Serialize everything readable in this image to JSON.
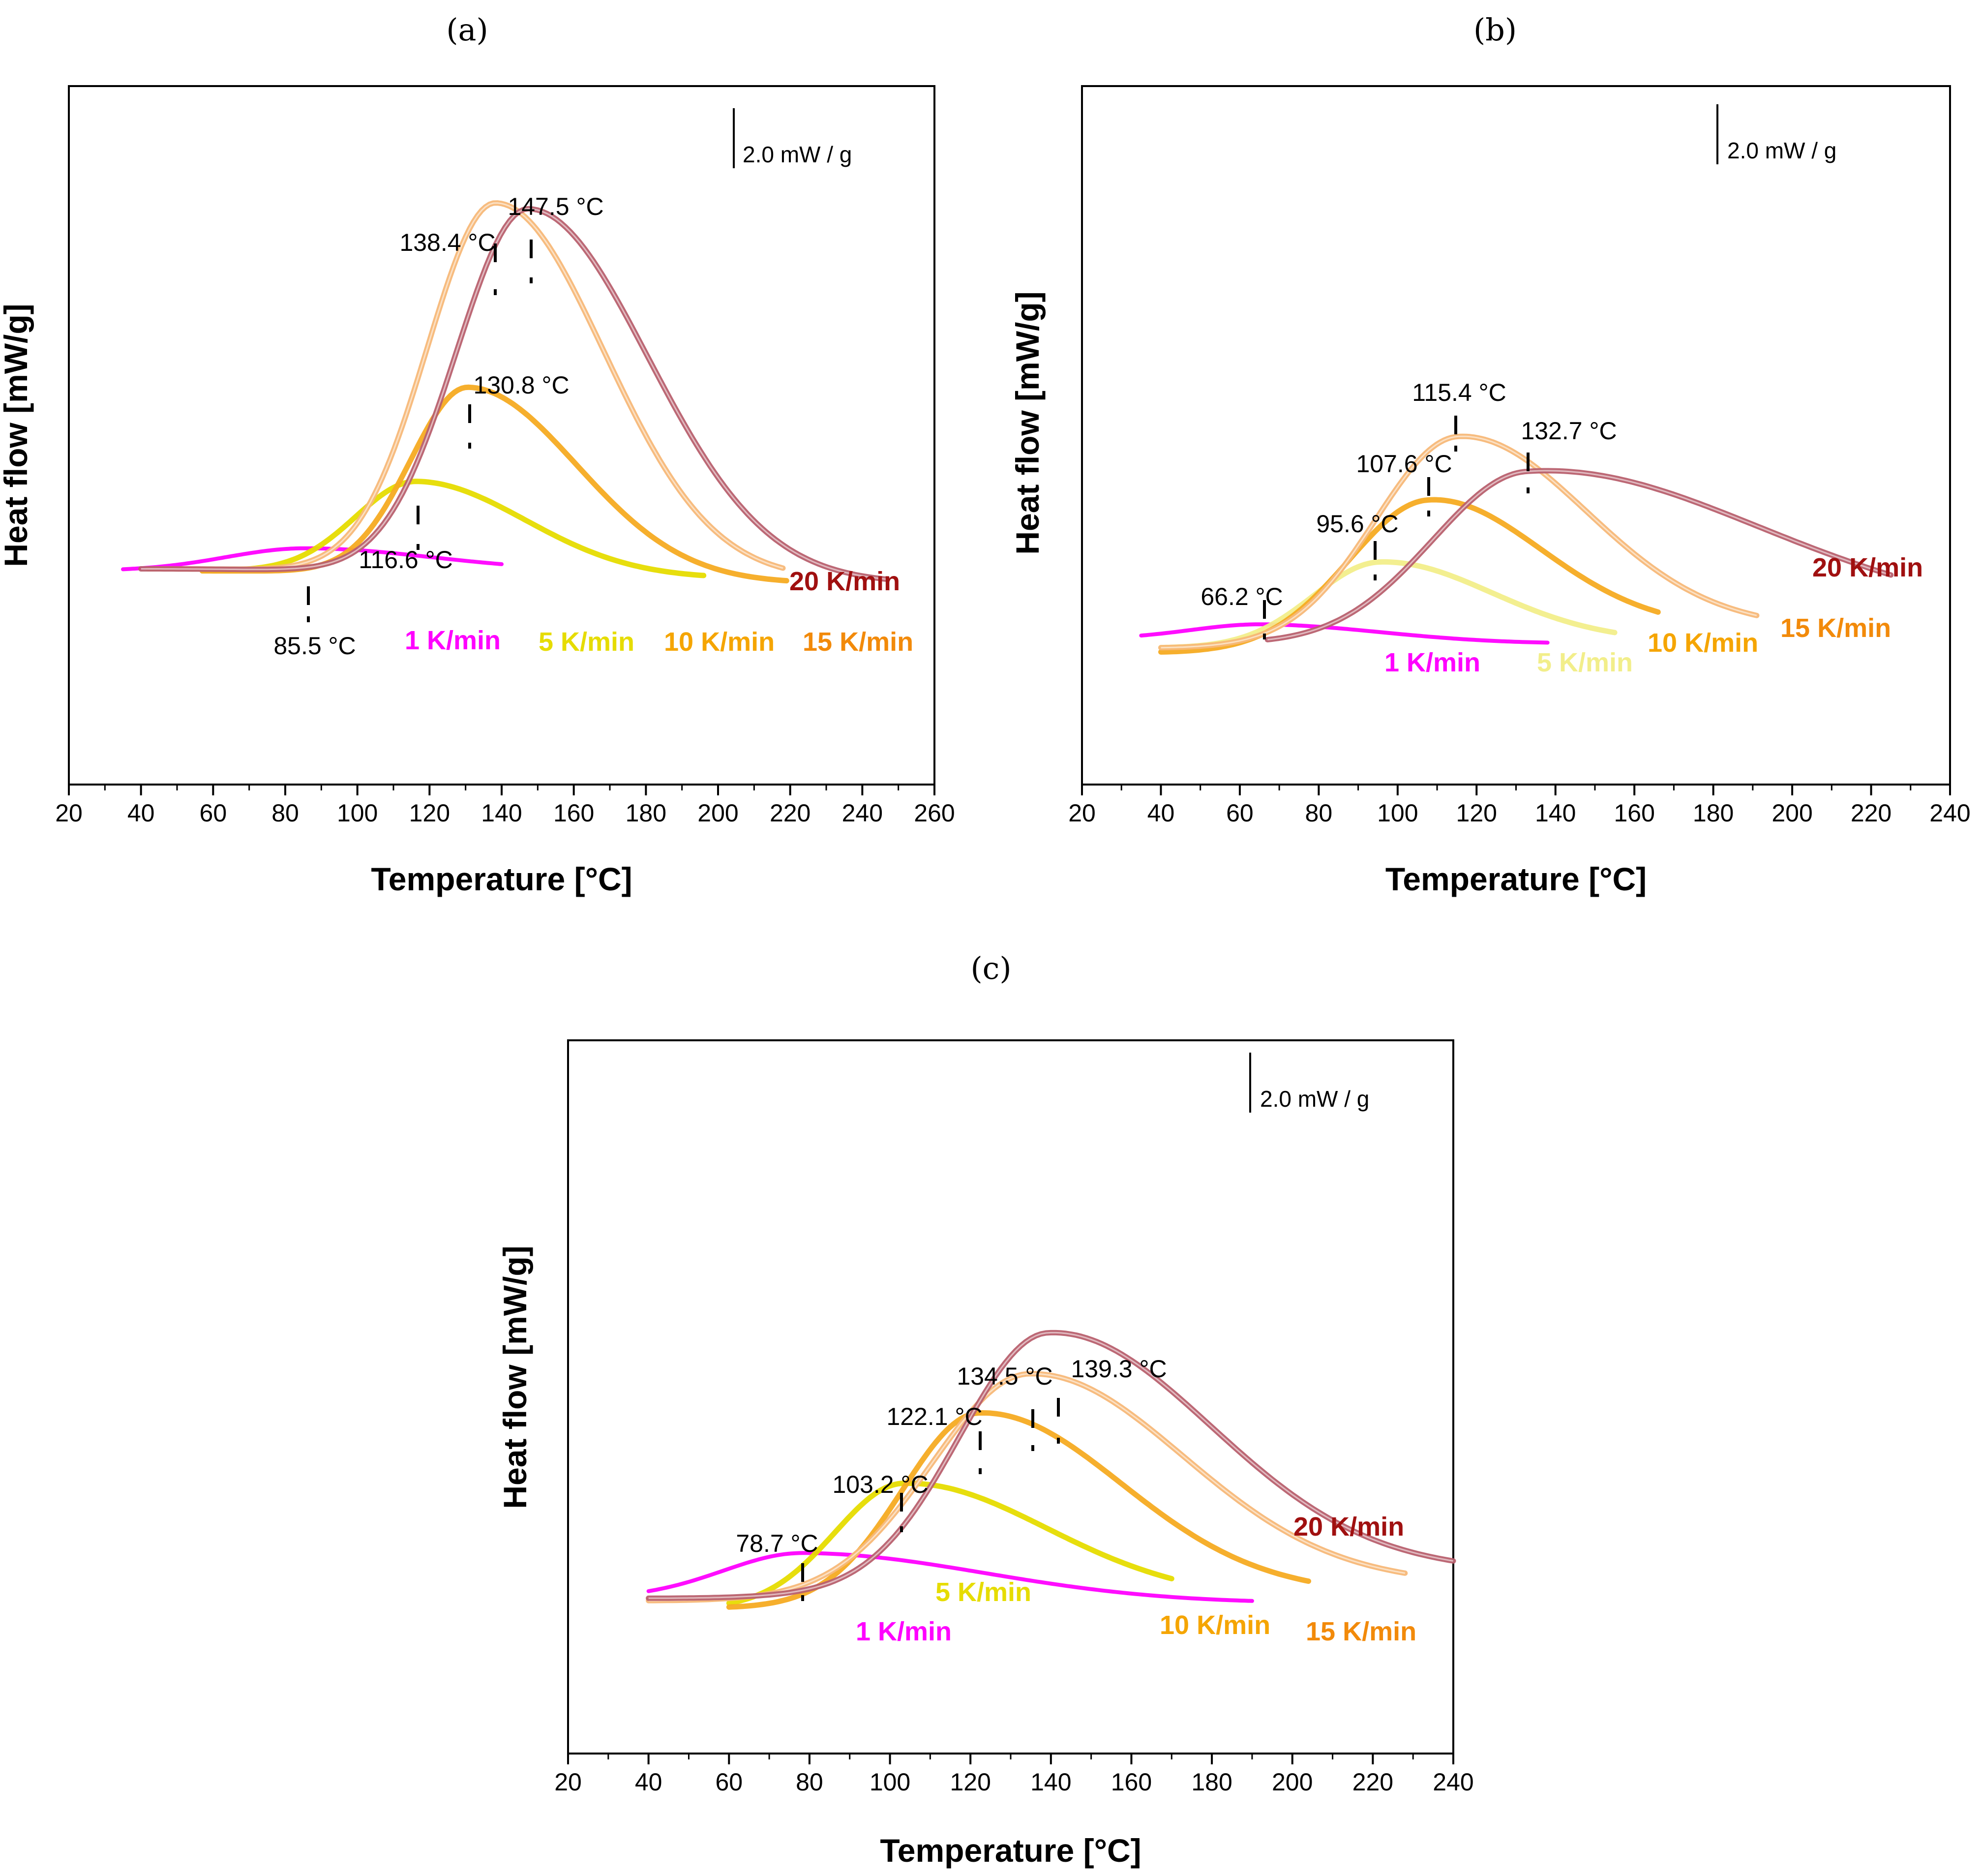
{
  "figure": {
    "colors": {
      "1 K/min": "#ff00ff",
      "5 K/min": "#e6dc00",
      "10 K/min": "#f5ab22",
      "15 K/min": "#f7b878",
      "20 K/min": "#b8606e",
      "label_5_b": "#f2ee8a",
      "label_20": "#a01010",
      "label_15": "#f28a0a",
      "label_10": "#f5a500",
      "label_5": "#e6dc00",
      "label_1": "#ff00ff"
    }
  },
  "chart_data": [
    {
      "panel_label": "(a)",
      "type": "line",
      "xlabel": "Temperature [°C]",
      "ylabel": "Heat flow [mW/g]",
      "xlim": [
        20,
        260
      ],
      "xticks": [
        20,
        40,
        60,
        80,
        100,
        120,
        140,
        160,
        180,
        200,
        220,
        240,
        260
      ],
      "scale_bar": "2.0 mW / g",
      "series": [
        {
          "name": "1 K/min",
          "start": 35,
          "base_start": 0.0,
          "end": 140,
          "base_end": 0.0,
          "peak_T": 85.5,
          "peak_h": 0.55,
          "w_left": 22,
          "w_right": 35
        },
        {
          "name": "5 K/min",
          "start": 57,
          "base_start": 0.0,
          "end": 196,
          "base_end": -0.18,
          "peak_T": 116.6,
          "peak_h": 2.25,
          "w_left": 17,
          "w_right": 30
        },
        {
          "name": "10 K/min",
          "start": 57,
          "base_start": 0.0,
          "end": 219,
          "base_end": -0.3,
          "peak_T": 130.8,
          "peak_h": 4.6,
          "w_left": 16,
          "w_right": 30
        },
        {
          "name": "15 K/min",
          "start": 42,
          "base_start": 0.05,
          "end": 218,
          "base_end": -0.2,
          "peak_T": 138.4,
          "peak_h": 9.05,
          "w_left": 19,
          "w_right": 30
        },
        {
          "name": "20 K/min",
          "start": 40,
          "base_start": 0.05,
          "end": 247,
          "base_end": -0.3,
          "peak_T": 147.5,
          "peak_h": 8.95,
          "w_left": 20,
          "w_right": 33
        }
      ],
      "peak_labels": [
        "85.5 °C",
        "116.6 °C",
        "130.8 °C",
        "138.4 °C",
        "147.5 °C"
      ],
      "legend_labels": [
        "1 K/min",
        "5 K/min",
        "10 K/min",
        "15 K/min",
        "20 K/min"
      ]
    },
    {
      "panel_label": "(b)",
      "type": "line",
      "xlabel": "Temperature [°C]",
      "ylabel": "Heat flow [mW/g]",
      "xlim": [
        20,
        240
      ],
      "xticks": [
        20,
        40,
        60,
        80,
        100,
        120,
        140,
        160,
        180,
        200,
        220,
        240
      ],
      "scale_bar": "2.0 mW / g",
      "series": [
        {
          "name": "1 K/min",
          "start": 35,
          "base_start": -0.35,
          "end": 138,
          "base_end": -0.45,
          "peak_T": 66.2,
          "peak_h": 0.35,
          "w_left": 18,
          "w_right": 30
        },
        {
          "name": "5 K/min",
          "start": 40,
          "base_start": -0.55,
          "end": 155,
          "base_end": -0.4,
          "peak_T": 95.6,
          "peak_h": 1.85,
          "w_left": 17,
          "w_right": 28
        },
        {
          "name": "10 K/min",
          "start": 40,
          "base_start": -0.65,
          "end": 166,
          "base_end": -0.1,
          "peak_T": 107.6,
          "peak_h": 3.1,
          "w_left": 20,
          "w_right": 28
        },
        {
          "name": "15 K/min",
          "start": 40,
          "base_start": -0.55,
          "end": 191,
          "base_end": -0.1,
          "peak_T": 115.4,
          "peak_h": 4.5,
          "w_left": 21,
          "w_right": 32
        },
        {
          "name": "20 K/min",
          "start": 67,
          "base_start": -0.45,
          "end": 225,
          "base_end": 0.2,
          "peak_T": 132.7,
          "peak_h": 3.6,
          "w_left": 24,
          "w_right": 55
        }
      ],
      "peak_labels": [
        "66.2 °C",
        "95.6 °C",
        "107.6 °C",
        "115.4 °C",
        "132.7 °C"
      ],
      "legend_labels": [
        "1 K/min",
        "5 K/min",
        "10 K/min",
        "15 K/min",
        "20 K/min"
      ]
    },
    {
      "panel_label": "(c)",
      "type": "line",
      "xlabel": "Temperature [°C]",
      "ylabel": "Heat flow [mW/g]",
      "xlim": [
        20,
        240
      ],
      "xticks": [
        20,
        40,
        60,
        80,
        100,
        120,
        140,
        160,
        180,
        200,
        220,
        240
      ],
      "scale_bar": "2.0 mW / g",
      "series": [
        {
          "name": "1 K/min",
          "start": 40,
          "base_start": 0.0,
          "end": 190,
          "base_end": -0.1,
          "peak_T": 78.7,
          "peak_h": 0.95,
          "w_left": 20,
          "w_right": 45
        },
        {
          "name": "5 K/min",
          "start": 60,
          "base_start": -0.2,
          "end": 170,
          "base_end": 0.0,
          "peak_T": 103.2,
          "peak_h": 2.5,
          "w_left": 17,
          "w_right": 35
        },
        {
          "name": "10 K/min",
          "start": 60,
          "base_start": -0.2,
          "end": 204,
          "base_end": 0.1,
          "peak_T": 122.1,
          "peak_h": 3.9,
          "w_left": 19,
          "w_right": 35
        },
        {
          "name": "15 K/min",
          "start": 40,
          "base_start": -0.05,
          "end": 228,
          "base_end": 0.3,
          "peak_T": 134.5,
          "peak_h": 4.5,
          "w_left": 24,
          "w_right": 38
        },
        {
          "name": "20 K/min",
          "start": 40,
          "base_start": 0.0,
          "end": 240,
          "base_end": 0.55,
          "peak_T": 139.3,
          "peak_h": 5.2,
          "w_left": 22,
          "w_right": 40
        }
      ],
      "peak_labels": [
        "78.7 °C",
        "103.2 °C",
        "122.1 °C",
        "134.5 °C",
        "139.3 °C"
      ],
      "legend_labels": [
        "1 K/min",
        "5 K/min",
        "10 K/min",
        "15 K/min",
        "20 K/min"
      ]
    }
  ]
}
